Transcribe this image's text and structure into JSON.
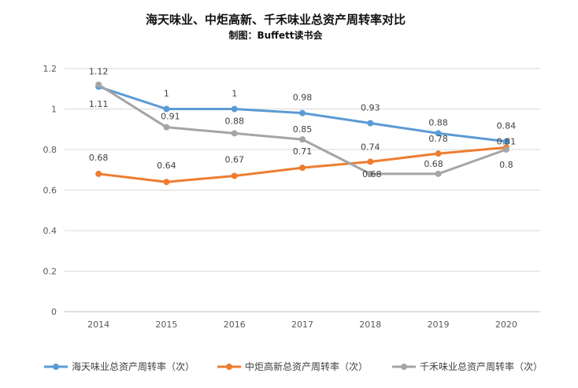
{
  "title": "海天味业、中炬高新、千禾味业总资产周转率对比",
  "subtitle": "制图：Buffett读书会",
  "chart_data": {
    "type": "line",
    "x": [
      "2014",
      "2015",
      "2016",
      "2017",
      "2018",
      "2019",
      "2020"
    ],
    "ylim": [
      0,
      1.2
    ],
    "yticks": [
      "0",
      "0.2",
      "0.4",
      "0.6",
      "0.8",
      "1",
      "1.2"
    ],
    "grid": "horizontal",
    "legend_position": "bottom",
    "series": [
      {
        "name": "海天味业总资产周转率（次）",
        "color": "#5B9BD5",
        "values": [
          1.11,
          1,
          1,
          0.98,
          0.93,
          0.88,
          0.84
        ],
        "labels": [
          "1.11",
          "1",
          "1",
          "0.98",
          "0.93",
          "0.88",
          "0.84"
        ]
      },
      {
        "name": "中炬高新总资产周转率（次）",
        "color": "#ED7D31",
        "values": [
          0.68,
          0.64,
          0.67,
          0.71,
          0.74,
          0.78,
          0.81
        ],
        "labels": [
          "0.68",
          "0.64",
          "0.67",
          "0.71",
          "0.74",
          "0.78",
          "0.81"
        ]
      },
      {
        "name": "千禾味业总资产周转率（次）",
        "color": "#A5A5A5",
        "values": [
          1.12,
          0.91,
          0.88,
          0.85,
          0.68,
          0.68,
          0.8
        ],
        "labels": [
          "1.12",
          "0.91",
          "0.88",
          "0.85",
          "0.68",
          "0.68",
          "0.8"
        ]
      }
    ]
  }
}
